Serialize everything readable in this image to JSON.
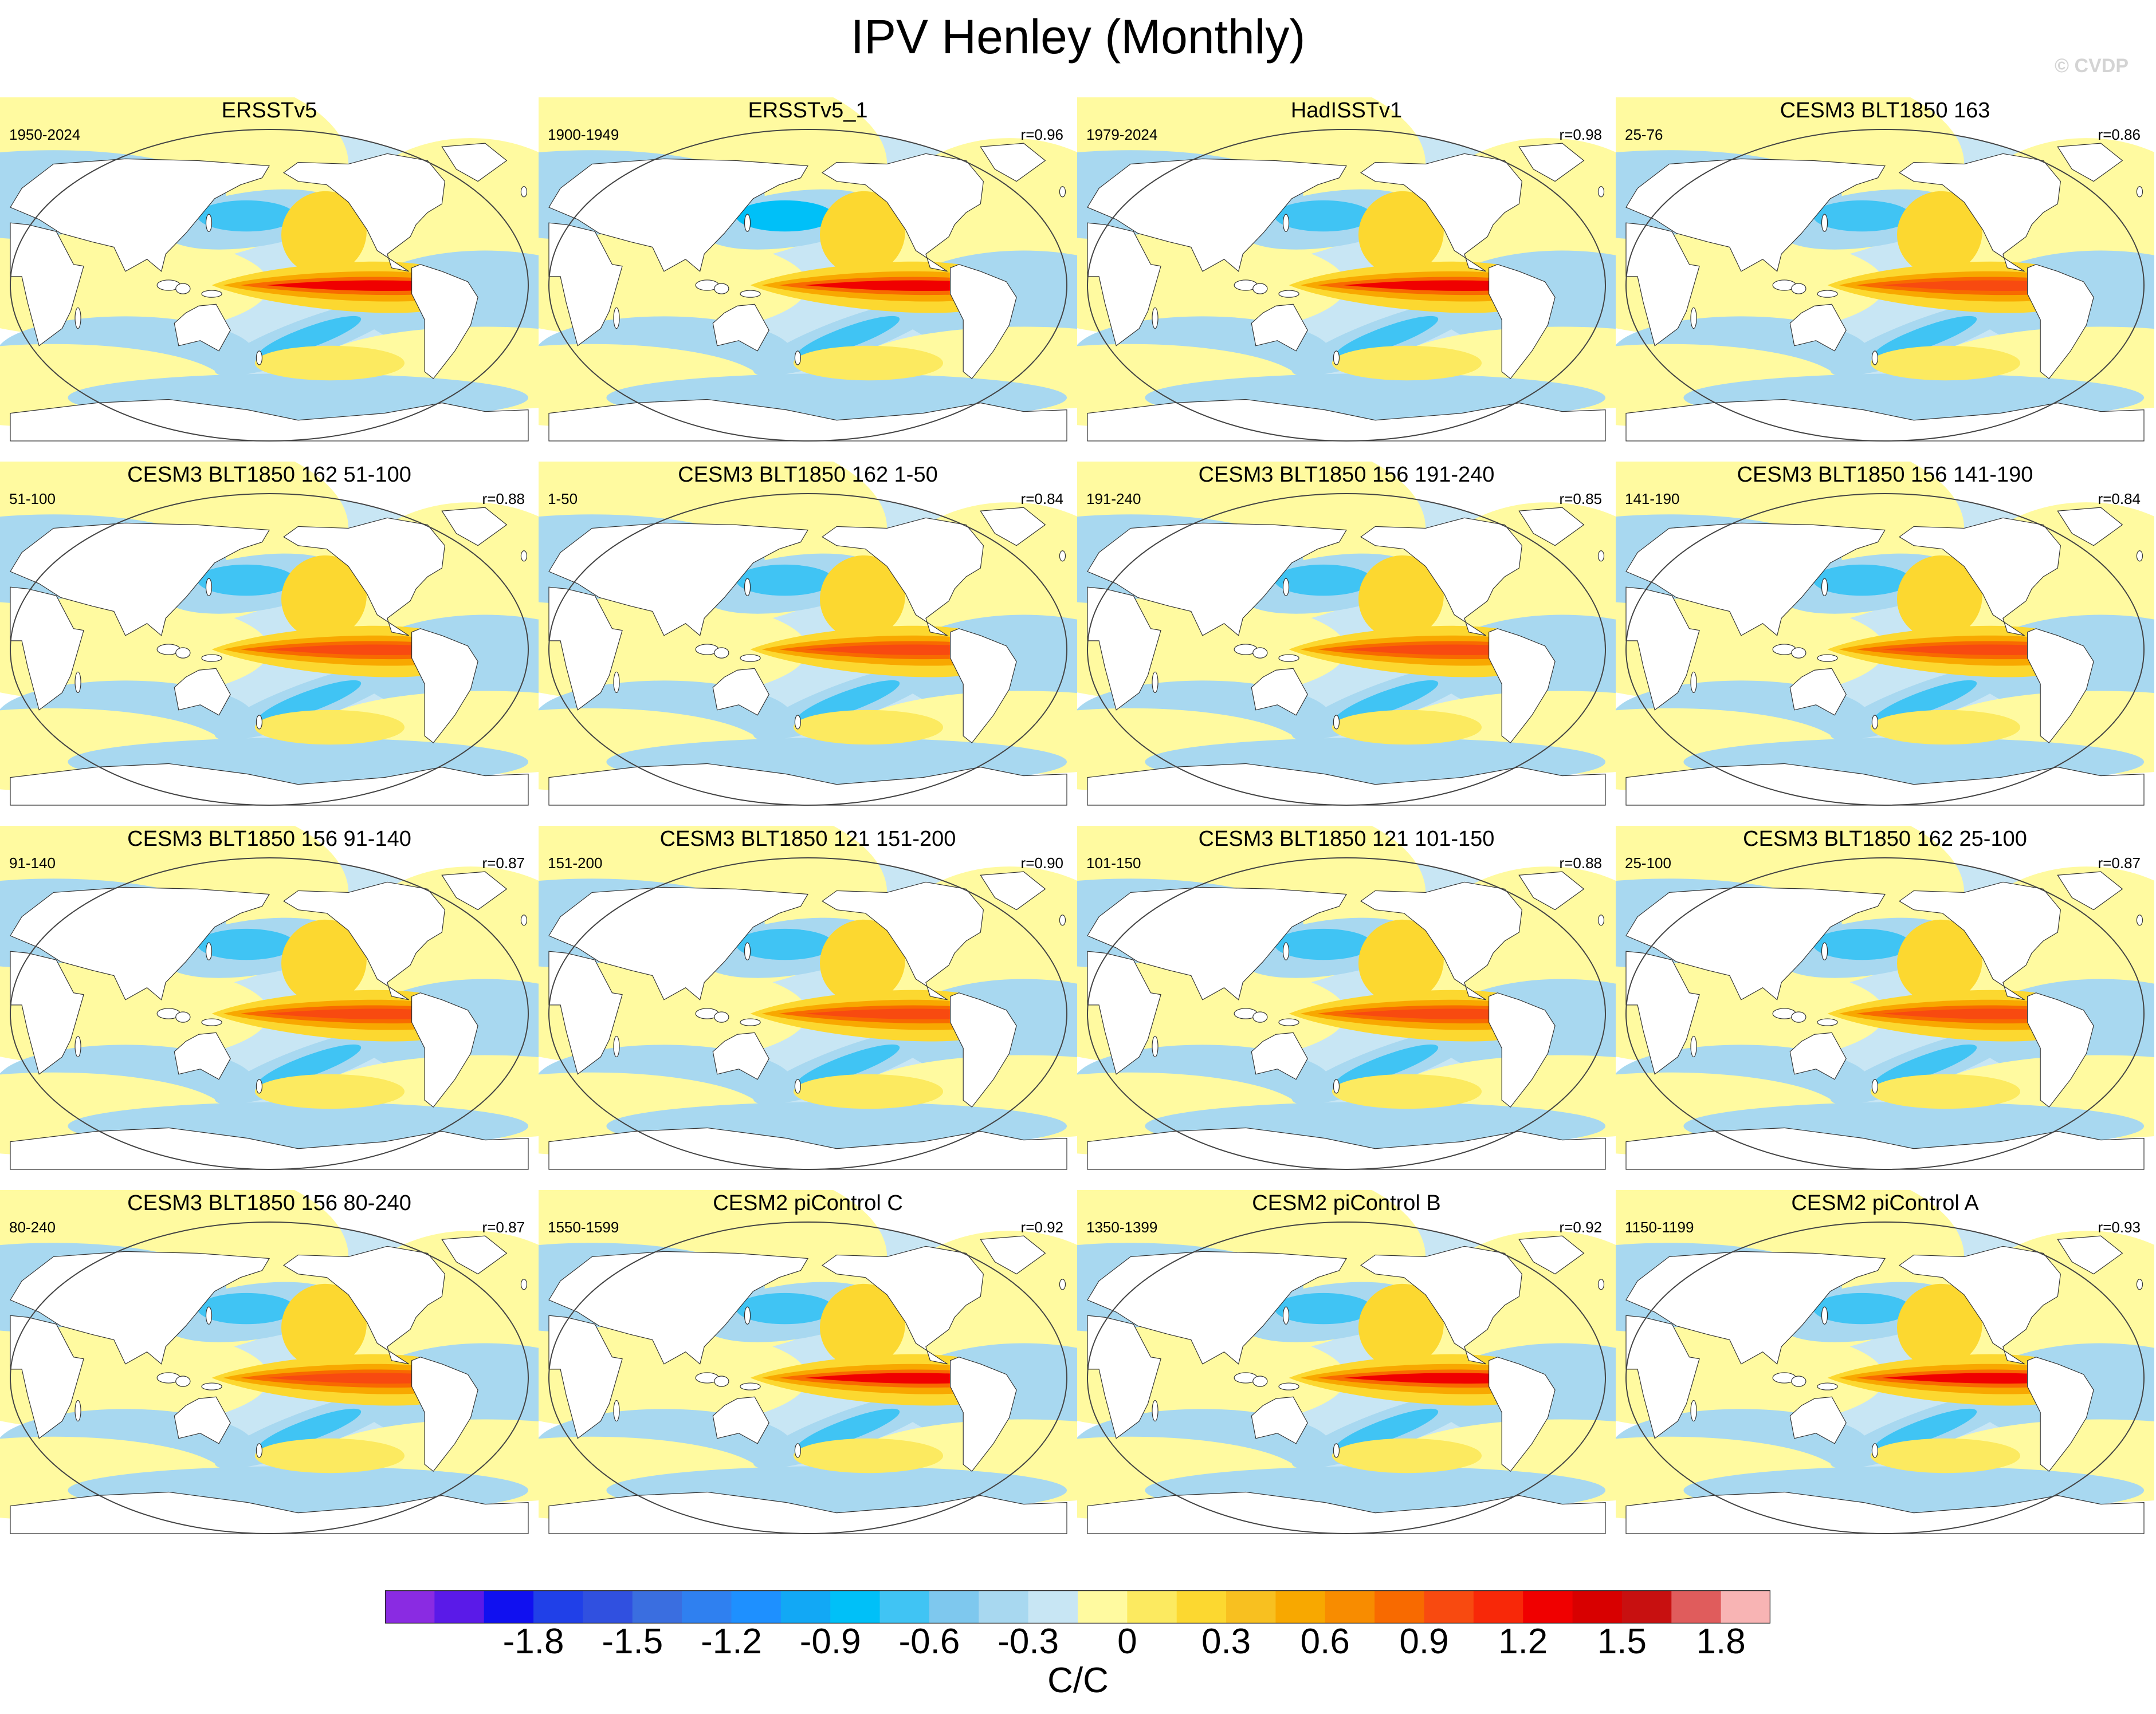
{
  "title": "IPV Henley (Monthly)",
  "watermark": "© CVDP",
  "panels": [
    {
      "title": "ERSSTv5",
      "period": "1950-2024",
      "r": ""
    },
    {
      "title": "ERSSTv5_1",
      "period": "1900-1949",
      "r": "r=0.96"
    },
    {
      "title": "HadISSTv1",
      "period": "1979-2024",
      "r": "r=0.98"
    },
    {
      "title": "CESM3 BLT1850 163",
      "period": "25-76",
      "r": "r=0.86"
    },
    {
      "title": "CESM3 BLT1850 162 51-100",
      "period": "51-100",
      "r": "r=0.88"
    },
    {
      "title": "CESM3 BLT1850 162 1-50",
      "period": "1-50",
      "r": "r=0.84"
    },
    {
      "title": "CESM3 BLT1850 156 191-240",
      "period": "191-240",
      "r": "r=0.85"
    },
    {
      "title": "CESM3 BLT1850 156 141-190",
      "period": "141-190",
      "r": "r=0.84"
    },
    {
      "title": "CESM3 BLT1850 156 91-140",
      "period": "91-140",
      "r": "r=0.87"
    },
    {
      "title": "CESM3 BLT1850 121 151-200",
      "period": "151-200",
      "r": "r=0.90"
    },
    {
      "title": "CESM3 BLT1850 121 101-150",
      "period": "101-150",
      "r": "r=0.88"
    },
    {
      "title": "CESM3 BLT1850 162 25-100",
      "period": "25-100",
      "r": "r=0.87"
    },
    {
      "title": "CESM3 BLT1850 156 80-240",
      "period": "80-240",
      "r": "r=0.87"
    },
    {
      "title": "CESM2 piControl C",
      "period": "1550-1599",
      "r": "r=0.92"
    },
    {
      "title": "CESM2 piControl B",
      "period": "1350-1399",
      "r": "r=0.92"
    },
    {
      "title": "CESM2 piControl A",
      "period": "1150-1199",
      "r": "r=0.93"
    }
  ],
  "colorbar": {
    "units": "C/C",
    "ticks": [
      "-1.8",
      "-1.5",
      "-1.2",
      "-0.9",
      "-0.6",
      "-0.3",
      "0",
      "0.3",
      "0.6",
      "0.9",
      "1.2",
      "1.5",
      "1.8"
    ],
    "colors": [
      "#8a2be2",
      "#5a1ae8",
      "#1010f0",
      "#2040e8",
      "#3050e0",
      "#3a6ee0",
      "#2f80f0",
      "#1e90ff",
      "#12a8f5",
      "#00c0f8",
      "#40c4f4",
      "#7ec8ee",
      "#a8d8f0",
      "#c8e6f4",
      "#fffaa0",
      "#fcea60",
      "#fcd830",
      "#f8c020",
      "#f8a800",
      "#f88c00",
      "#f86a00",
      "#f84a10",
      "#f82808",
      "#f00000",
      "#d80000",
      "#c81010",
      "#e05c5c",
      "#f8b4b4"
    ]
  }
}
